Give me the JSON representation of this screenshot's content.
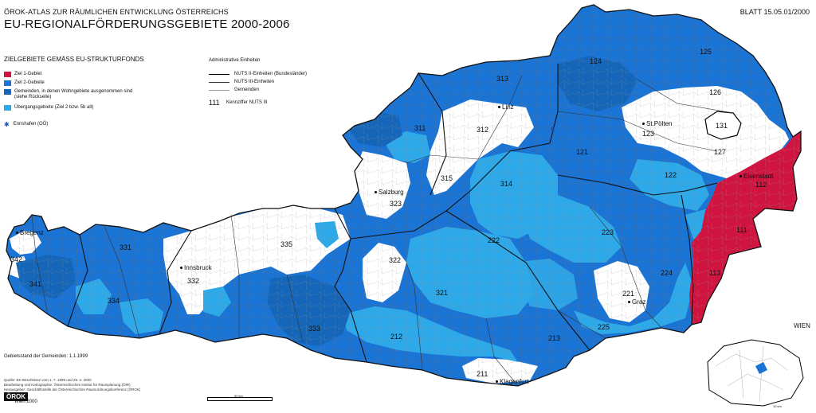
{
  "header": {
    "supertitle": "ÖROK-ATLAS ZUR RÄUMLICHEN ENTWICKLUNG ÖSTERREICHS",
    "title": "EU-REGIONALFÖRDERUNGSGEBIETE 2000-2006",
    "sheet": "BLATT 15.05.01/2000"
  },
  "legend": {
    "heading": "ZIELGEBIETE GEMÄSS EU-STRUKTURFONDS",
    "items": [
      {
        "label": "Ziel 1-Gebiet",
        "color": "#d01440"
      },
      {
        "label": "Ziel 2-Gebiete",
        "color": "#1a74d6"
      },
      {
        "label": "Gemeinden, in denen Wohngebiete ausgenommen sind",
        "note": "(siehe Rückseite)",
        "color": "#1566b8"
      },
      {
        "label": "Übergangsgebiete (Ziel 2 bzw. 5b alt)",
        "color": "#2da8e8"
      }
    ],
    "special": "Ennshafen (OÖ)",
    "special_icon": "star-icon"
  },
  "admin_legend": {
    "heading": "Administrative Einheiten",
    "items": [
      {
        "label": "NUTS II-Einheiten (Bundesländer)"
      },
      {
        "label": "NUTS III-Einheiten"
      },
      {
        "label": "Gemeinden"
      }
    ],
    "code_sample": "111",
    "code_label": "Kennziffer NUTS III"
  },
  "footer": {
    "status": "Gebietsstand der Gemeinden: 1.1.1999",
    "source_lines": [
      "Quelle: EK-Beschlüsse vom 1. 7. 1999 und 25. 2. 2000",
      "Bearbeitung und Kartographie: Österreichisches Institut für Raumplanung (ÖIR)",
      "Herausgeber: Geschäftsstelle der Österreichischen Raumordnungskonferenz (ÖROK)"
    ],
    "logo": "ÖROK",
    "place_year": "Wien 2000",
    "scale": "50 km",
    "inset_title": "WIEN",
    "inset_scale": "10 km"
  },
  "map": {
    "colors": {
      "ziel1": "#d01440",
      "ziel2": "#1a74d6",
      "ziel2_dark": "#1566b8",
      "transition": "#2da8e8",
      "none": "#ffffff",
      "border": "#333333"
    },
    "nuts3_labels": [
      "111",
      "112",
      "113",
      "121",
      "122",
      "123",
      "124",
      "125",
      "126",
      "127",
      "131",
      "211",
      "212",
      "213",
      "221",
      "222",
      "223",
      "224",
      "225",
      "311",
      "312",
      "313",
      "315",
      "314",
      "321",
      "322",
      "323",
      "331",
      "332",
      "333",
      "334",
      "335",
      "341",
      "342"
    ],
    "cities": [
      "Bregenz",
      "Innsbruck",
      "Salzburg",
      "Linz",
      "St.Pölten",
      "Eisenstadt",
      "Graz",
      "Klagenfurt"
    ]
  }
}
